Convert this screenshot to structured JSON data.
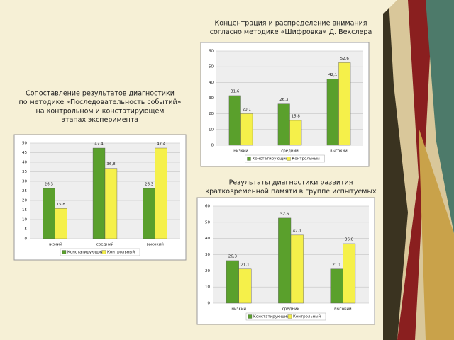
{
  "chart_data": [
    {
      "type": "bar",
      "title": [
        "Сопоставление результатов диагностики",
        "по методике «Последовательность событий»",
        "на контрольном и констатирующем",
        "этапах эксперимента"
      ],
      "categories": [
        "низкий",
        "средний",
        "высокий"
      ],
      "series": [
        {
          "name": "Констатирующий",
          "color": "#5aa02c",
          "values": [
            26.3,
            47.4,
            26.3
          ],
          "value_labels": [
            "26,3",
            "47,4",
            "26,3"
          ]
        },
        {
          "name": "Контрольный",
          "color": "#f5f04a",
          "values": [
            15.8,
            36.8,
            47.4
          ],
          "value_labels": [
            "15,8",
            "36,8",
            "47,4"
          ]
        }
      ],
      "ylim": [
        0,
        50
      ],
      "yticks": [
        0,
        5,
        10,
        15,
        20,
        25,
        30,
        35,
        40,
        45,
        50
      ],
      "grid": true
    },
    {
      "type": "bar",
      "title": [
        "Концентрация и распределение внимания",
        "согласно методике «Шифровка» Д. Векслера"
      ],
      "categories": [
        "низкий",
        "средний",
        "высокий"
      ],
      "series": [
        {
          "name": "Констатирующий",
          "color": "#5aa02c",
          "values": [
            31.6,
            26.3,
            42.1
          ],
          "value_labels": [
            "31,6",
            "26,3",
            "42,1"
          ]
        },
        {
          "name": "Контрольный",
          "color": "#f5f04a",
          "values": [
            20.1,
            15.8,
            52.6
          ],
          "value_labels": [
            "20,1",
            "15,8",
            "52,6"
          ]
        }
      ],
      "ylim": [
        0,
        60
      ],
      "yticks": [
        0,
        10,
        20,
        30,
        40,
        50,
        60
      ],
      "grid": true
    },
    {
      "type": "bar",
      "title": [
        "Результаты диагностики развития",
        "кратковременной памяти в группе испытуемых"
      ],
      "categories": [
        "низкий",
        "средний",
        "высокий"
      ],
      "series": [
        {
          "name": "Констатирующий",
          "color": "#5aa02c",
          "values": [
            26.3,
            52.6,
            21.1
          ],
          "value_labels": [
            "26,3",
            "52,6",
            "21,1"
          ]
        },
        {
          "name": "Контрольный",
          "color": "#f5f04a",
          "values": [
            21.1,
            42.1,
            36.8
          ],
          "value_labels": [
            "21,1",
            "42,1",
            "36,8"
          ]
        }
      ],
      "ylim": [
        0,
        60
      ],
      "yticks": [
        0,
        10,
        20,
        30,
        40,
        50,
        60
      ],
      "grid": true
    }
  ]
}
